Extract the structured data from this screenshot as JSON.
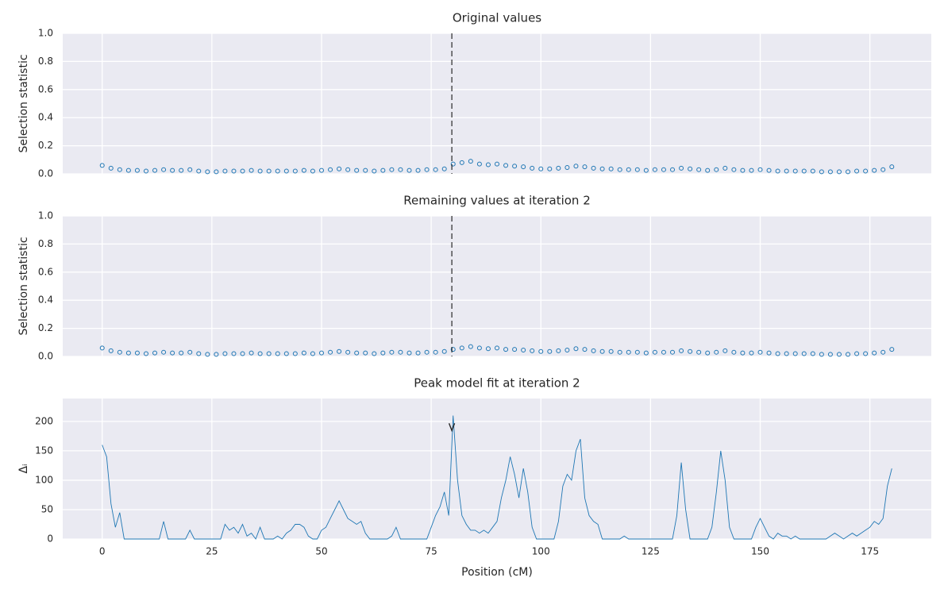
{
  "chart_data": [
    {
      "type": "scatter",
      "title": "Original values",
      "ylabel": "Selection statistic",
      "color": "#1f77b4",
      "xlim": [
        -9,
        189
      ],
      "ylim": [
        0,
        1
      ],
      "xticks": [
        0,
        25,
        50,
        75,
        100,
        125,
        150,
        175
      ],
      "yticks": [
        {
          "value": 0,
          "label": "0.0"
        },
        0.2,
        0.4,
        0.6,
        0.8,
        {
          "value": 1,
          "label": "1.0"
        }
      ],
      "grid": true,
      "vline": 79.7,
      "x": [
        0,
        2,
        4,
        6,
        8,
        10,
        12,
        14,
        16,
        18,
        20,
        22,
        24,
        26,
        28,
        30,
        32,
        34,
        36,
        38,
        40,
        42,
        44,
        46,
        48,
        50,
        52,
        54,
        56,
        58,
        60,
        62,
        64,
        66,
        68,
        70,
        72,
        74,
        76,
        78,
        80,
        82,
        84,
        86,
        88,
        90,
        92,
        94,
        96,
        98,
        100,
        102,
        104,
        106,
        108,
        110,
        112,
        114,
        116,
        118,
        120,
        122,
        124,
        126,
        128,
        130,
        132,
        134,
        136,
        138,
        140,
        142,
        144,
        146,
        148,
        150,
        152,
        154,
        156,
        158,
        160,
        162,
        164,
        166,
        168,
        170,
        172,
        174,
        176,
        178,
        180
      ],
      "values": [
        0.06,
        0.04,
        0.03,
        0.025,
        0.025,
        0.02,
        0.025,
        0.03,
        0.025,
        0.025,
        0.03,
        0.02,
        0.015,
        0.015,
        0.02,
        0.02,
        0.02,
        0.025,
        0.02,
        0.02,
        0.02,
        0.02,
        0.02,
        0.025,
        0.02,
        0.025,
        0.03,
        0.035,
        0.03,
        0.025,
        0.025,
        0.02,
        0.025,
        0.03,
        0.03,
        0.025,
        0.025,
        0.03,
        0.03,
        0.035,
        0.07,
        0.08,
        0.09,
        0.07,
        0.065,
        0.07,
        0.06,
        0.055,
        0.05,
        0.04,
        0.035,
        0.035,
        0.04,
        0.045,
        0.055,
        0.05,
        0.04,
        0.035,
        0.035,
        0.03,
        0.03,
        0.03,
        0.025,
        0.03,
        0.03,
        0.03,
        0.04,
        0.035,
        0.03,
        0.025,
        0.03,
        0.04,
        0.03,
        0.025,
        0.025,
        0.03,
        0.025,
        0.02,
        0.02,
        0.02,
        0.02,
        0.02,
        0.015,
        0.015,
        0.015,
        0.015,
        0.02,
        0.02,
        0.025,
        0.03,
        0.05
      ]
    },
    {
      "type": "scatter",
      "title": "Remaining values at iteration 2",
      "ylabel": "Selection statistic",
      "color": "#1f77b4",
      "xlim": [
        -9,
        189
      ],
      "ylim": [
        0,
        1
      ],
      "xticks": [
        0,
        25,
        50,
        75,
        100,
        125,
        150,
        175
      ],
      "yticks": [
        {
          "value": 0,
          "label": "0.0"
        },
        0.2,
        0.4,
        0.6,
        0.8,
        {
          "value": 1,
          "label": "1.0"
        }
      ],
      "grid": true,
      "vline": 79.7,
      "x": [
        0,
        2,
        4,
        6,
        8,
        10,
        12,
        14,
        16,
        18,
        20,
        22,
        24,
        26,
        28,
        30,
        32,
        34,
        36,
        38,
        40,
        42,
        44,
        46,
        48,
        50,
        52,
        54,
        56,
        58,
        60,
        62,
        64,
        66,
        68,
        70,
        72,
        74,
        76,
        78,
        80,
        82,
        84,
        86,
        88,
        90,
        92,
        94,
        96,
        98,
        100,
        102,
        104,
        106,
        108,
        110,
        112,
        114,
        116,
        118,
        120,
        122,
        124,
        126,
        128,
        130,
        132,
        134,
        136,
        138,
        140,
        142,
        144,
        146,
        148,
        150,
        152,
        154,
        156,
        158,
        160,
        162,
        164,
        166,
        168,
        170,
        172,
        174,
        176,
        178,
        180
      ],
      "values": [
        0.06,
        0.04,
        0.03,
        0.025,
        0.025,
        0.02,
        0.025,
        0.03,
        0.025,
        0.025,
        0.03,
        0.02,
        0.015,
        0.015,
        0.02,
        0.02,
        0.02,
        0.025,
        0.02,
        0.02,
        0.02,
        0.02,
        0.02,
        0.025,
        0.02,
        0.025,
        0.03,
        0.035,
        0.03,
        0.025,
        0.025,
        0.02,
        0.025,
        0.03,
        0.03,
        0.025,
        0.025,
        0.03,
        0.03,
        0.035,
        0.05,
        0.06,
        0.07,
        0.06,
        0.055,
        0.06,
        0.05,
        0.05,
        0.045,
        0.04,
        0.035,
        0.035,
        0.04,
        0.045,
        0.055,
        0.05,
        0.04,
        0.035,
        0.035,
        0.03,
        0.03,
        0.03,
        0.025,
        0.03,
        0.03,
        0.03,
        0.04,
        0.035,
        0.03,
        0.025,
        0.03,
        0.04,
        0.03,
        0.025,
        0.025,
        0.03,
        0.025,
        0.02,
        0.02,
        0.02,
        0.02,
        0.02,
        0.015,
        0.015,
        0.015,
        0.015,
        0.02,
        0.02,
        0.025,
        0.03,
        0.05
      ]
    },
    {
      "type": "line",
      "title": "Peak model fit at iteration 2",
      "ylabel": "Δᵢ",
      "xlabel": "Position (cM)",
      "color": "#1f77b4",
      "xlim": [
        -9,
        189
      ],
      "ylim": [
        0,
        239
      ],
      "xticks": [
        0,
        25,
        50,
        75,
        100,
        125,
        150,
        175
      ],
      "yticks": [
        0,
        50,
        100,
        150,
        200
      ],
      "grid": true,
      "marker": {
        "x": 79.7,
        "y": 190
      },
      "x": [
        0,
        1,
        2,
        3,
        4,
        5,
        6,
        7,
        8,
        9,
        10,
        11,
        12,
        13,
        14,
        15,
        16,
        17,
        18,
        19,
        20,
        21,
        22,
        23,
        24,
        25,
        26,
        27,
        28,
        29,
        30,
        31,
        32,
        33,
        34,
        35,
        36,
        37,
        38,
        39,
        40,
        41,
        42,
        43,
        44,
        45,
        46,
        47,
        48,
        49,
        50,
        51,
        52,
        53,
        54,
        55,
        56,
        57,
        58,
        59,
        60,
        61,
        62,
        63,
        64,
        65,
        66,
        67,
        68,
        69,
        70,
        71,
        72,
        73,
        74,
        75,
        76,
        77,
        78,
        79,
        80,
        81,
        82,
        83,
        84,
        85,
        86,
        87,
        88,
        89,
        90,
        91,
        92,
        93,
        94,
        95,
        96,
        97,
        98,
        99,
        100,
        101,
        102,
        103,
        104,
        105,
        106,
        107,
        108,
        109,
        110,
        111,
        112,
        113,
        114,
        115,
        116,
        117,
        118,
        119,
        120,
        121,
        122,
        123,
        124,
        125,
        126,
        127,
        128,
        129,
        130,
        131,
        132,
        133,
        134,
        135,
        136,
        137,
        138,
        139,
        140,
        141,
        142,
        143,
        144,
        145,
        146,
        147,
        148,
        149,
        150,
        151,
        152,
        153,
        154,
        155,
        156,
        157,
        158,
        159,
        160,
        161,
        162,
        163,
        164,
        165,
        166,
        167,
        168,
        169,
        170,
        171,
        172,
        173,
        174,
        175,
        176,
        177,
        178,
        179,
        180
      ],
      "values": [
        160,
        140,
        60,
        20,
        45,
        0,
        0,
        0,
        0,
        0,
        0,
        0,
        0,
        0,
        30,
        0,
        0,
        0,
        0,
        0,
        15,
        0,
        0,
        0,
        0,
        0,
        0,
        0,
        25,
        15,
        20,
        10,
        25,
        5,
        10,
        0,
        20,
        0,
        0,
        0,
        5,
        0,
        10,
        15,
        25,
        25,
        20,
        5,
        0,
        0,
        15,
        20,
        35,
        50,
        65,
        50,
        35,
        30,
        25,
        30,
        10,
        0,
        0,
        0,
        0,
        0,
        5,
        20,
        0,
        0,
        0,
        0,
        0,
        0,
        0,
        20,
        40,
        55,
        80,
        40,
        210,
        100,
        40,
        25,
        15,
        15,
        10,
        15,
        10,
        20,
        30,
        70,
        100,
        140,
        110,
        70,
        120,
        80,
        20,
        0,
        0,
        0,
        0,
        0,
        30,
        90,
        110,
        100,
        150,
        170,
        70,
        40,
        30,
        25,
        0,
        0,
        0,
        0,
        0,
        5,
        0,
        0,
        0,
        0,
        0,
        0,
        0,
        0,
        0,
        0,
        0,
        40,
        130,
        50,
        0,
        0,
        0,
        0,
        0,
        20,
        80,
        150,
        100,
        20,
        0,
        0,
        0,
        0,
        0,
        20,
        35,
        20,
        5,
        0,
        10,
        5,
        5,
        0,
        5,
        0,
        0,
        0,
        0,
        0,
        0,
        0,
        5,
        10,
        5,
        0,
        5,
        10,
        5,
        10,
        15,
        20,
        30,
        25,
        35,
        90,
        120
      ]
    }
  ]
}
